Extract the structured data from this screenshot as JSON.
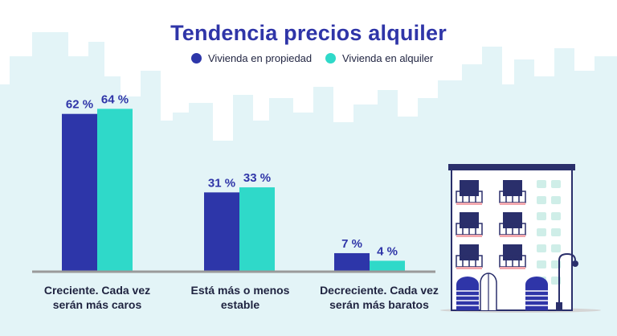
{
  "chart_data": {
    "type": "bar",
    "title": "Tendencia precios alquiler",
    "categories": [
      "Creciente. Cada vez serán más caros",
      "Está más o menos estable",
      "Decreciente. Cada vez serán más baratos"
    ],
    "category_lines": [
      [
        "Creciente. Cada vez",
        "serán más caros"
      ],
      [
        "Está más o menos",
        "estable"
      ],
      [
        "Decreciente. Cada vez",
        "serán más baratos"
      ]
    ],
    "series": [
      {
        "name": "Vivienda en propiedad",
        "values": [
          62,
          31,
          7
        ],
        "color": "#2d36a9"
      },
      {
        "name": "Vivienda en alquiler",
        "values": [
          64,
          33,
          4
        ],
        "color": "#2fd9c9"
      }
    ],
    "data_labels": [
      [
        "62 %",
        "31 %",
        "7 %"
      ],
      [
        "64 %",
        "33 %",
        "4 %"
      ]
    ],
    "ylim": [
      0,
      100
    ],
    "grid": false,
    "legend_position": "top-center"
  },
  "colors": {
    "title": "#2f35a8",
    "skyline": "#e3f4f7",
    "baseline": "#9a9a9a",
    "label_text": "#2f35a8"
  },
  "icons": [
    "city-skyline",
    "apartment-building-illustration"
  ]
}
